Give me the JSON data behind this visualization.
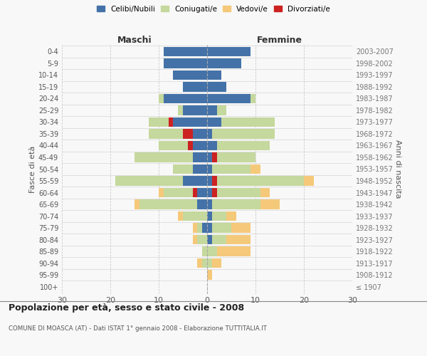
{
  "age_groups": [
    "100+",
    "95-99",
    "90-94",
    "85-89",
    "80-84",
    "75-79",
    "70-74",
    "65-69",
    "60-64",
    "55-59",
    "50-54",
    "45-49",
    "40-44",
    "35-39",
    "30-34",
    "25-29",
    "20-24",
    "15-19",
    "10-14",
    "5-9",
    "0-4"
  ],
  "birth_years": [
    "≤ 1907",
    "1908-1912",
    "1913-1917",
    "1918-1922",
    "1923-1927",
    "1928-1932",
    "1933-1937",
    "1938-1942",
    "1943-1947",
    "1948-1952",
    "1953-1957",
    "1958-1962",
    "1963-1967",
    "1968-1972",
    "1973-1977",
    "1978-1982",
    "1983-1987",
    "1988-1992",
    "1993-1997",
    "1998-2002",
    "2003-2007"
  ],
  "males": {
    "celibi": [
      0,
      0,
      0,
      0,
      0,
      1,
      0,
      2,
      2,
      5,
      3,
      3,
      3,
      3,
      7,
      5,
      9,
      5,
      7,
      9,
      9
    ],
    "coniugati": [
      0,
      0,
      1,
      1,
      2,
      1,
      5,
      12,
      7,
      14,
      4,
      12,
      7,
      9,
      5,
      1,
      1,
      0,
      0,
      0,
      0
    ],
    "vedovi": [
      0,
      0,
      1,
      0,
      1,
      1,
      1,
      1,
      1,
      0,
      0,
      0,
      0,
      0,
      0,
      0,
      0,
      0,
      0,
      0,
      0
    ],
    "divorziati": [
      0,
      0,
      0,
      0,
      0,
      0,
      0,
      0,
      1,
      0,
      0,
      0,
      1,
      2,
      1,
      0,
      0,
      0,
      0,
      0,
      0
    ]
  },
  "females": {
    "nubili": [
      0,
      0,
      0,
      0,
      1,
      1,
      1,
      1,
      1,
      1,
      1,
      1,
      2,
      1,
      3,
      2,
      9,
      4,
      3,
      7,
      9
    ],
    "coniugate": [
      0,
      0,
      1,
      2,
      3,
      4,
      3,
      10,
      10,
      19,
      8,
      9,
      11,
      13,
      11,
      2,
      1,
      0,
      0,
      0,
      0
    ],
    "vedove": [
      0,
      1,
      2,
      7,
      5,
      4,
      2,
      4,
      2,
      2,
      2,
      0,
      0,
      0,
      0,
      0,
      0,
      0,
      0,
      0,
      0
    ],
    "divorziate": [
      0,
      0,
      0,
      0,
      0,
      0,
      0,
      0,
      1,
      1,
      0,
      1,
      0,
      0,
      0,
      0,
      0,
      0,
      0,
      0,
      0
    ]
  },
  "colors": {
    "celibi_nubili": "#4472a8",
    "coniugati_e": "#c5d89d",
    "vedovi_e": "#f5c97a",
    "divorziati_e": "#cc2222"
  },
  "title": "Popolazione per età, sesso e stato civile - 2008",
  "subtitle": "COMUNE DI MOASCA (AT) - Dati ISTAT 1° gennaio 2008 - Elaborazione TUTTITALIA.IT",
  "xlabel_left": "Maschi",
  "xlabel_right": "Femmine",
  "ylabel_left": "Fasce di età",
  "ylabel_right": "Anni di nascita",
  "xlim": 30,
  "background_color": "#f8f8f8",
  "grid_color": "#cccccc",
  "bar_height": 0.8
}
